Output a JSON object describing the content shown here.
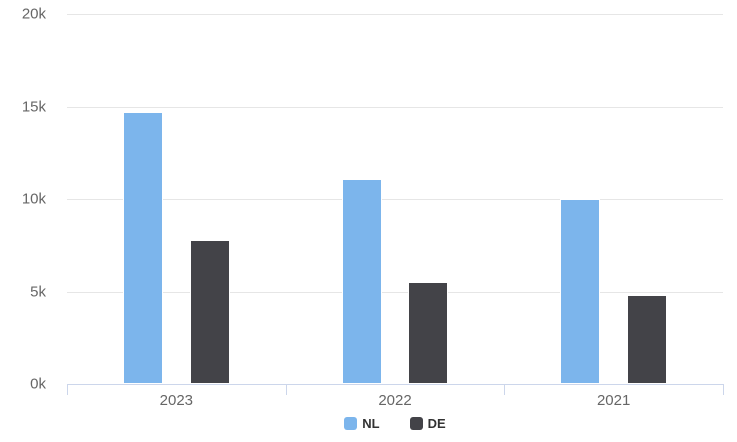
{
  "chart_data": {
    "type": "bar",
    "title": "",
    "xlabel": "",
    "ylabel": "",
    "categories": [
      "2023",
      "2022",
      "2021"
    ],
    "series": [
      {
        "name": "NL",
        "color": "#7cb5ec",
        "values": [
          14700,
          11100,
          10000
        ]
      },
      {
        "name": "DE",
        "color": "#434348",
        "values": [
          7800,
          5500,
          4800
        ]
      }
    ],
    "ylim": [
      0,
      20000
    ],
    "yticks": [
      {
        "value": 0,
        "label": "0k"
      },
      {
        "value": 5000,
        "label": "5k"
      },
      {
        "value": 10000,
        "label": "10k"
      },
      {
        "value": 15000,
        "label": "15k"
      },
      {
        "value": 20000,
        "label": "20k"
      }
    ],
    "grid": true,
    "legend_position": "bottom",
    "legend": [
      "NL",
      "DE"
    ]
  },
  "colors": {
    "background": "#ffffff",
    "gridline": "#e6e6e6",
    "axis_line": "#ccd6eb",
    "axis_label_text": "#666666",
    "legend_text": "#333333",
    "series_nl": "#7cb5ec",
    "series_de": "#434348"
  }
}
